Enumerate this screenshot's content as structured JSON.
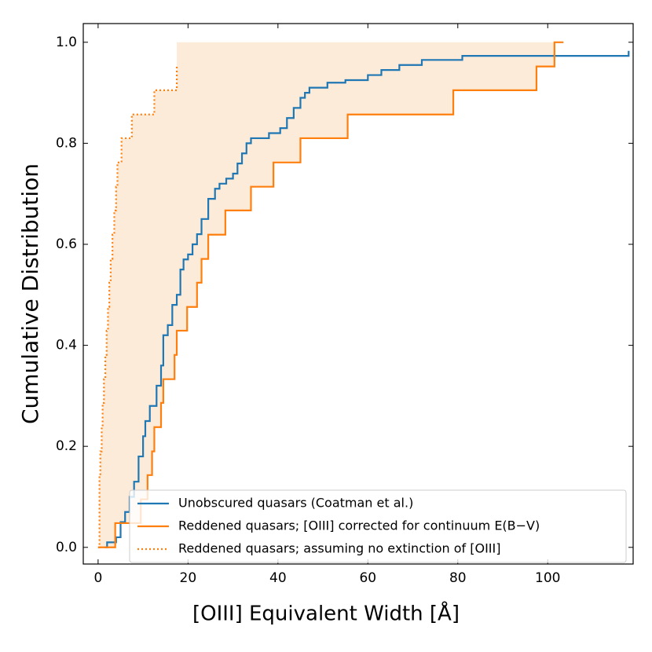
{
  "chart_data": {
    "type": "step",
    "xlabel": "[OIII] Equivalent Width [Å]",
    "ylabel": "Cumulative Distribution",
    "xlim": [
      -3.3,
      119
    ],
    "ylim": [
      -0.033,
      1.037
    ],
    "xticks": [
      0,
      20,
      40,
      60,
      80,
      100
    ],
    "yticks": [
      {
        "value": 0,
        "label": "0.0"
      },
      {
        "value": 0.2,
        "label": "0.2"
      },
      {
        "value": 0.4,
        "label": "0.4"
      },
      {
        "value": 0.6,
        "label": "0.6"
      },
      {
        "value": 0.8,
        "label": "0.8"
      },
      {
        "value": 1.0,
        "label": "1.0"
      }
    ],
    "legend": "lower right",
    "fill_color": "#fdebd9",
    "series": [
      {
        "name": "Unobscured quasars (Coatman et al.)",
        "color": "#1f77b4",
        "style": "solid",
        "x": [
          1.5,
          2,
          4,
          5,
          6,
          7,
          8,
          9,
          10,
          10.5,
          11.5,
          13,
          14,
          14.5,
          15.5,
          16.5,
          17.5,
          18.3,
          19,
          20,
          21,
          22,
          23,
          24.5,
          26,
          27,
          28.5,
          30,
          31,
          32,
          33,
          34,
          38,
          40.5,
          42,
          43.5,
          45,
          46,
          47,
          51,
          55,
          60,
          63,
          67,
          72,
          81,
          118
        ],
        "values": [
          0,
          0.01,
          0.02,
          0.05,
          0.07,
          0.1,
          0.13,
          0.18,
          0.22,
          0.25,
          0.28,
          0.32,
          0.36,
          0.42,
          0.44,
          0.48,
          0.5,
          0.55,
          0.57,
          0.58,
          0.6,
          0.62,
          0.65,
          0.69,
          0.71,
          0.72,
          0.73,
          0.74,
          0.76,
          0.78,
          0.8,
          0.81,
          0.82,
          0.83,
          0.85,
          0.87,
          0.89,
          0.9,
          0.91,
          0.92,
          0.925,
          0.935,
          0.945,
          0.955,
          0.965,
          0.973,
          0.983
        ]
      },
      {
        "name": "Reddened quasars; [OIII] corrected for continuum E(B−V)",
        "color": "#ff7f0e",
        "style": "solid",
        "x": [
          0,
          3.8,
          9.5,
          11,
          12,
          12.5,
          14,
          14.5,
          17,
          17.5,
          19.8,
          22,
          23,
          24.5,
          28.3,
          34,
          39,
          45,
          55.5,
          79,
          97.5,
          101.5,
          103.5
        ],
        "values": [
          0,
          0.048,
          0.095,
          0.143,
          0.19,
          0.238,
          0.286,
          0.333,
          0.381,
          0.429,
          0.476,
          0.524,
          0.571,
          0.619,
          0.667,
          0.714,
          0.762,
          0.81,
          0.857,
          0.905,
          0.952,
          1.0,
          1.0
        ]
      },
      {
        "name": "Reddened quasars; assuming no extinction of [OIII]",
        "color": "#ff7f0e",
        "style": "dotted",
        "x": [
          0,
          0.3,
          0.5,
          0.8,
          1.0,
          1.3,
          1.6,
          1.9,
          2.2,
          2.5,
          2.8,
          3.2,
          3.6,
          4.0,
          4.3,
          5.2,
          7.5,
          12.5,
          17.5
        ],
        "values": [
          0,
          0.143,
          0.19,
          0.238,
          0.286,
          0.333,
          0.381,
          0.429,
          0.476,
          0.524,
          0.571,
          0.619,
          0.667,
          0.714,
          0.762,
          0.81,
          0.857,
          0.905,
          0.952
        ]
      }
    ]
  }
}
